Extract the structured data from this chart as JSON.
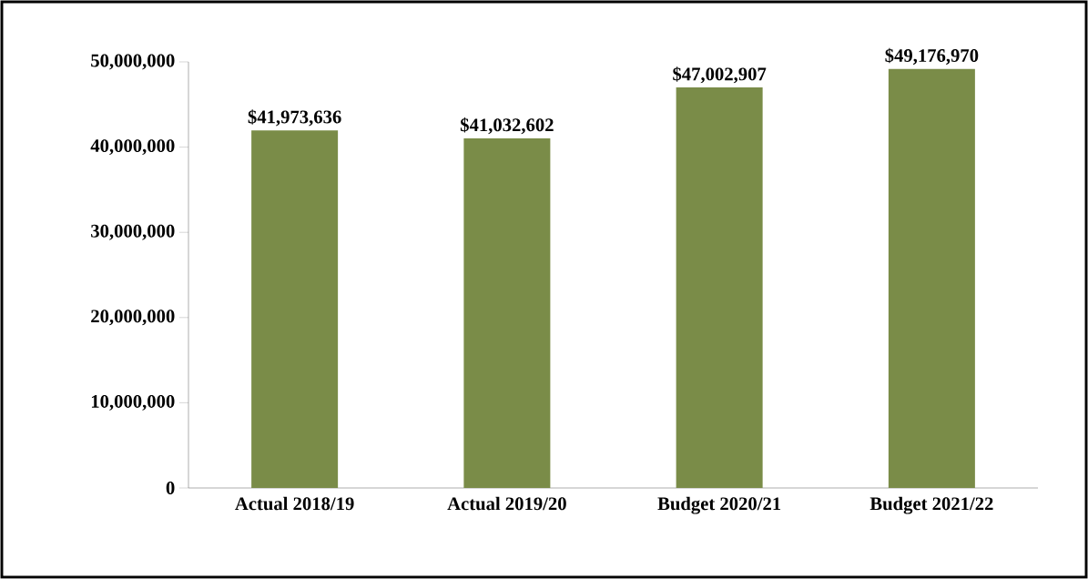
{
  "chart_data": {
    "type": "bar",
    "categories": [
      "Actual 2018/19",
      "Actual 2019/20",
      "Budget 2020/21",
      "Budget 2021/22"
    ],
    "values": [
      41973636,
      41032602,
      47002907,
      49176970
    ],
    "value_labels": [
      "$41,973,636",
      "$41,032,602",
      "$47,002,907",
      "$49,176,970"
    ],
    "color": "#7a8c48",
    "ylim": [
      0,
      50000000
    ],
    "yticks": [
      0,
      {
        "value": 10000000,
        "label": "10,000,000"
      },
      {
        "value": 20000000,
        "label": "20,000,000"
      },
      {
        "value": 30000000,
        "label": "30,000,000"
      },
      {
        "value": 40000000,
        "label": "40,000,000"
      },
      {
        "value": 50000000,
        "label": "50,000,000"
      }
    ]
  }
}
